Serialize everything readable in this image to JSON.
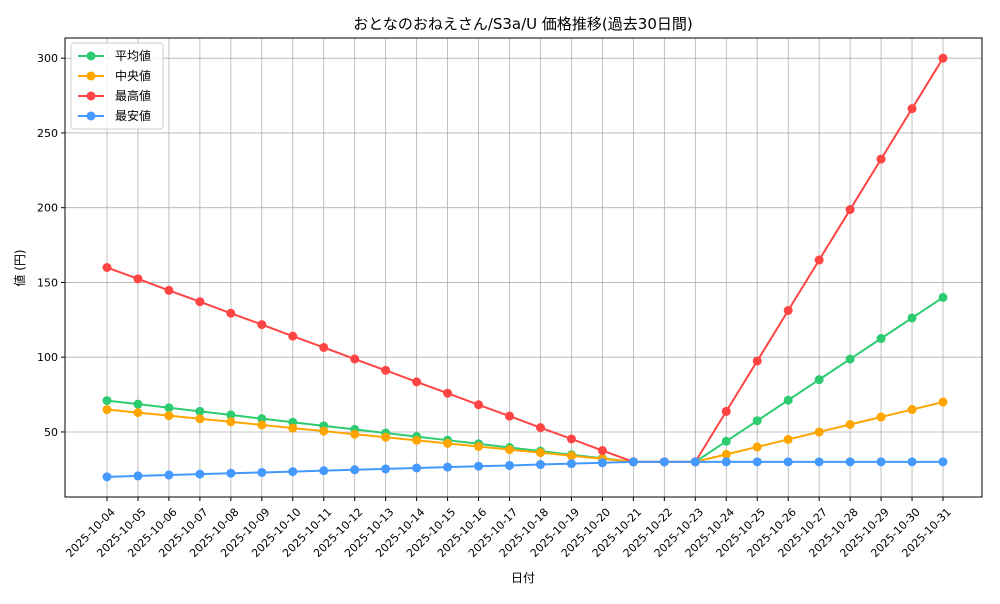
{
  "chart_data": {
    "type": "line",
    "title": "おとなのおねえさん/S3a/U 価格推移(過去30日間)",
    "xlabel": "日付",
    "ylabel": "値 (円)",
    "ylim": [
      6.5,
      313.5
    ],
    "yticks": [
      50,
      100,
      150,
      200,
      250,
      300
    ],
    "grid": true,
    "legend_position": "top-left",
    "categories": [
      "2025-10-04",
      "2025-10-05",
      "2025-10-06",
      "2025-10-07",
      "2025-10-08",
      "2025-10-09",
      "2025-10-10",
      "2025-10-11",
      "2025-10-12",
      "2025-10-13",
      "2025-10-14",
      "2025-10-15",
      "2025-10-16",
      "2025-10-17",
      "2025-10-18",
      "2025-10-19",
      "2025-10-20",
      "2025-10-21",
      "2025-10-22",
      "2025-10-23",
      "2025-10-24",
      "2025-10-25",
      "2025-10-26",
      "2025-10-27",
      "2025-10-28",
      "2025-10-29",
      "2025-10-30",
      "2025-10-31"
    ],
    "series": [
      {
        "name": "平均値",
        "color": "#2ecc71",
        "values": [
          71,
          68.6,
          66.2,
          63.8,
          61.4,
          58.9,
          56.5,
          54.1,
          51.7,
          49.3,
          46.9,
          44.5,
          42.1,
          39.6,
          37.2,
          34.8,
          32.4,
          30,
          30,
          30,
          43.75,
          57.5,
          71.25,
          85,
          98.75,
          112.5,
          126.25,
          140
        ]
      },
      {
        "name": "中央値",
        "color": "#ffa500",
        "values": [
          65,
          62.9,
          60.9,
          58.8,
          56.8,
          54.7,
          52.6,
          50.6,
          48.5,
          46.5,
          44.4,
          42.4,
          40.3,
          38.2,
          36.2,
          34.1,
          32.1,
          30,
          30,
          30,
          35,
          40,
          45,
          50,
          55,
          60,
          65,
          70
        ]
      },
      {
        "name": "最高値",
        "color": "#ff4444",
        "values": [
          160,
          152.4,
          144.7,
          137.1,
          129.4,
          121.8,
          114.1,
          106.5,
          98.8,
          91.2,
          83.5,
          75.9,
          68.2,
          60.6,
          52.9,
          45.3,
          37.6,
          30,
          30,
          30,
          63.75,
          97.5,
          131.25,
          165,
          198.75,
          232.5,
          266.25,
          300
        ]
      },
      {
        "name": "最安値",
        "color": "#4499ff",
        "values": [
          20,
          20.6,
          21.2,
          21.8,
          22.4,
          22.9,
          23.5,
          24.1,
          24.7,
          25.3,
          25.9,
          26.5,
          27.1,
          27.6,
          28.2,
          28.8,
          29.4,
          30,
          30,
          30,
          30,
          30,
          30,
          30,
          30,
          30,
          30,
          30
        ]
      }
    ]
  }
}
